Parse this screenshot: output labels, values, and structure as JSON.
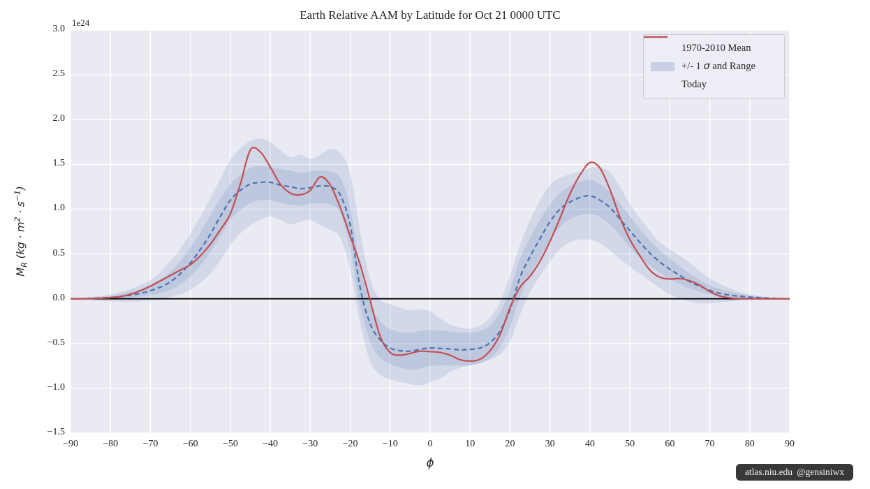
{
  "header": {
    "title": "Earth Relative AAM by Latitude for Oct 21 0000 UTC"
  },
  "axes": {
    "y_offset_label": "1e24",
    "xlabel": "ϕ",
    "ylabel_parts": {
      "base": "M",
      "sub": "R",
      "p1": " (kg · m",
      "sup1": "2",
      "p2": " · s",
      "sup2": "−1",
      "p3": ")"
    }
  },
  "legend": {
    "mean_label": "1970-2010 Mean",
    "band_pre": "+/- 1 ",
    "band_sigma": "σ",
    "band_post": " and Range",
    "today_label": "Today"
  },
  "watermark": {
    "site": "atlas.niu.edu",
    "handle": "@gensiniwx"
  },
  "colors": {
    "plot_bg": "#eaeaf2",
    "grid": "#ffffff",
    "mean_blue": "#4C72B0",
    "today_red": "#C44E52",
    "band_fill": "#4C72B0",
    "zero_line": "#000000",
    "text": "#262626"
  },
  "chart_data": {
    "type": "line",
    "title": "Earth Relative AAM by Latitude for Oct 21 0000 UTC",
    "xlabel": "ϕ",
    "ylabel": "M_R (kg·m²·s⁻¹)",
    "y_multiplier": "1e24",
    "xlim": [
      -90,
      90
    ],
    "ylim": [
      -1.5,
      3.0
    ],
    "grid": true,
    "zero_line": true,
    "legend_position": "upper right",
    "xticks": [
      [
        -90,
        "−90"
      ],
      [
        -80,
        "−80"
      ],
      [
        -70,
        "−70"
      ],
      [
        -60,
        "−60"
      ],
      [
        -50,
        "−50"
      ],
      [
        -40,
        "−40"
      ],
      [
        -30,
        "−30"
      ],
      [
        -20,
        "−20"
      ],
      [
        -10,
        "−10"
      ],
      [
        0,
        "0"
      ],
      [
        10,
        "10"
      ],
      [
        20,
        "20"
      ],
      [
        30,
        "30"
      ],
      [
        40,
        "40"
      ],
      [
        50,
        "50"
      ],
      [
        60,
        "60"
      ],
      [
        70,
        "70"
      ],
      [
        80,
        "80"
      ],
      [
        90,
        "90"
      ]
    ],
    "yticks": [
      [
        3.0,
        "3.0"
      ],
      [
        2.5,
        "2.5"
      ],
      [
        2.0,
        "2.0"
      ],
      [
        1.5,
        "1.5"
      ],
      [
        1.0,
        "1.0"
      ],
      [
        0.5,
        "0.5"
      ],
      [
        0.0,
        "0.0"
      ],
      [
        -0.5,
        "−0.5"
      ],
      [
        -1.0,
        "−1.0"
      ],
      [
        -1.5,
        "−1.5"
      ]
    ],
    "x": [
      -90,
      -87.5,
      -85,
      -82.5,
      -80,
      -77.5,
      -75,
      -72.5,
      -70,
      -67.5,
      -65,
      -62.5,
      -60,
      -57.5,
      -55,
      -52.5,
      -50,
      -47.5,
      -45,
      -42.5,
      -40,
      -37.5,
      -35,
      -32.5,
      -30,
      -27.5,
      -25,
      -22.5,
      -20,
      -17.5,
      -15,
      -12.5,
      -10,
      -7.5,
      -5,
      -2.5,
      0,
      2.5,
      5,
      7.5,
      10,
      12.5,
      15,
      17.5,
      20,
      22.5,
      25,
      27.5,
      30,
      32.5,
      35,
      37.5,
      40,
      42.5,
      45,
      47.5,
      50,
      52.5,
      55,
      57.5,
      60,
      62.5,
      65,
      67.5,
      70,
      72.5,
      75,
      77.5,
      80,
      82.5,
      85,
      87.5,
      90
    ],
    "series": [
      {
        "name": "1970-2010 Mean",
        "style": "dashed",
        "color": "#4C72B0",
        "values": [
          0,
          0,
          0.005,
          0.01,
          0.015,
          0.025,
          0.04,
          0.06,
          0.09,
          0.13,
          0.19,
          0.28,
          0.4,
          0.55,
          0.72,
          0.92,
          1.1,
          1.21,
          1.28,
          1.3,
          1.3,
          1.27,
          1.25,
          1.23,
          1.24,
          1.26,
          1.25,
          1.16,
          0.82,
          0.12,
          -0.28,
          -0.46,
          -0.55,
          -0.58,
          -0.585,
          -0.565,
          -0.55,
          -0.555,
          -0.56,
          -0.57,
          -0.565,
          -0.55,
          -0.49,
          -0.36,
          -0.12,
          0.24,
          0.47,
          0.67,
          0.86,
          1.0,
          1.08,
          1.13,
          1.15,
          1.1,
          1.02,
          0.89,
          0.76,
          0.63,
          0.51,
          0.41,
          0.33,
          0.26,
          0.19,
          0.14,
          0.095,
          0.06,
          0.04,
          0.028,
          0.018,
          0.012,
          0.006,
          0.002,
          0
        ]
      },
      {
        "name": "Today",
        "style": "solid",
        "color": "#C44E52",
        "values": [
          0,
          0,
          0.002,
          0.006,
          0.012,
          0.025,
          0.05,
          0.09,
          0.14,
          0.2,
          0.26,
          0.32,
          0.38,
          0.48,
          0.61,
          0.77,
          0.95,
          1.28,
          1.66,
          1.64,
          1.47,
          1.28,
          1.18,
          1.16,
          1.21,
          1.36,
          1.27,
          1.02,
          0.7,
          0.38,
          -0.02,
          -0.42,
          -0.6,
          -0.63,
          -0.61,
          -0.585,
          -0.59,
          -0.6,
          -0.63,
          -0.68,
          -0.695,
          -0.675,
          -0.58,
          -0.4,
          -0.1,
          0.13,
          0.25,
          0.42,
          0.64,
          0.9,
          1.17,
          1.38,
          1.52,
          1.46,
          1.22,
          0.91,
          0.66,
          0.48,
          0.32,
          0.24,
          0.22,
          0.225,
          0.2,
          0.15,
          0.08,
          0.03,
          0.01,
          0.003,
          0,
          0,
          0,
          0,
          0
        ]
      }
    ],
    "bands": [
      {
        "name": "Range",
        "color": "#4C72B0",
        "opacity": 0.15,
        "upper": [
          0.008,
          0.012,
          0.02,
          0.032,
          0.05,
          0.075,
          0.11,
          0.15,
          0.21,
          0.3,
          0.42,
          0.56,
          0.73,
          0.92,
          1.12,
          1.34,
          1.55,
          1.68,
          1.76,
          1.79,
          1.75,
          1.66,
          1.58,
          1.61,
          1.56,
          1.61,
          1.67,
          1.63,
          1.4,
          0.75,
          0.22,
          -0.01,
          -0.06,
          -0.1,
          -0.13,
          -0.12,
          -0.14,
          -0.22,
          -0.29,
          -0.32,
          -0.335,
          -0.3,
          -0.21,
          -0.04,
          0.26,
          0.6,
          0.88,
          1.1,
          1.27,
          1.35,
          1.39,
          1.42,
          1.46,
          1.47,
          1.41,
          1.25,
          1.06,
          0.9,
          0.76,
          0.63,
          0.55,
          0.48,
          0.4,
          0.31,
          0.23,
          0.165,
          0.115,
          0.075,
          0.048,
          0.03,
          0.018,
          0.01,
          0.005
        ],
        "lower": [
          -0.008,
          -0.012,
          -0.018,
          -0.025,
          -0.03,
          -0.033,
          -0.033,
          -0.028,
          -0.02,
          -0.005,
          0.02,
          0.05,
          0.1,
          0.18,
          0.28,
          0.43,
          0.6,
          0.73,
          0.82,
          0.88,
          0.92,
          0.88,
          0.83,
          0.86,
          0.88,
          0.82,
          0.77,
          0.68,
          0.33,
          -0.28,
          -0.7,
          -0.85,
          -0.9,
          -0.93,
          -0.95,
          -0.97,
          -0.93,
          -0.89,
          -0.82,
          -0.77,
          -0.74,
          -0.72,
          -0.68,
          -0.62,
          -0.48,
          -0.18,
          0.08,
          0.25,
          0.42,
          0.55,
          0.63,
          0.66,
          0.66,
          0.62,
          0.54,
          0.44,
          0.36,
          0.28,
          0.2,
          0.12,
          0.05,
          0,
          -0.03,
          -0.05,
          -0.05,
          -0.04,
          -0.03,
          -0.02,
          -0.012,
          -0.008,
          -0.005,
          -0.002,
          0
        ]
      },
      {
        "name": "+/- 1 sigma",
        "color": "#4C72B0",
        "opacity": 0.15,
        "upper": [
          0.005,
          0.008,
          0.012,
          0.02,
          0.03,
          0.05,
          0.08,
          0.11,
          0.16,
          0.22,
          0.3,
          0.42,
          0.57,
          0.74,
          0.93,
          1.12,
          1.28,
          1.38,
          1.46,
          1.48,
          1.47,
          1.45,
          1.43,
          1.41,
          1.42,
          1.43,
          1.42,
          1.35,
          1.02,
          0.35,
          -0.05,
          -0.25,
          -0.34,
          -0.37,
          -0.38,
          -0.36,
          -0.35,
          -0.355,
          -0.365,
          -0.375,
          -0.375,
          -0.36,
          -0.3,
          -0.15,
          0.1,
          0.45,
          0.68,
          0.88,
          1.05,
          1.18,
          1.26,
          1.31,
          1.33,
          1.28,
          1.19,
          1.06,
          0.92,
          0.78,
          0.65,
          0.54,
          0.45,
          0.36,
          0.28,
          0.21,
          0.15,
          0.11,
          0.08,
          0.055,
          0.038,
          0.025,
          0.015,
          0.008,
          0.004
        ],
        "lower": [
          -0.004,
          -0.004,
          -0.003,
          -0.002,
          0,
          0.005,
          0.015,
          0.025,
          0.04,
          0.06,
          0.1,
          0.16,
          0.25,
          0.37,
          0.52,
          0.7,
          0.88,
          0.99,
          1.07,
          1.1,
          1.1,
          1.07,
          1.05,
          1.04,
          1.06,
          1.07,
          1.05,
          0.96,
          0.55,
          -0.08,
          -0.48,
          -0.66,
          -0.73,
          -0.77,
          -0.79,
          -0.78,
          -0.75,
          -0.745,
          -0.745,
          -0.75,
          -0.745,
          -0.72,
          -0.66,
          -0.54,
          -0.32,
          0.02,
          0.26,
          0.46,
          0.65,
          0.8,
          0.89,
          0.93,
          0.95,
          0.91,
          0.83,
          0.71,
          0.57,
          0.46,
          0.37,
          0.29,
          0.22,
          0.165,
          0.115,
          0.08,
          0.05,
          0.032,
          0.02,
          0.012,
          0.006,
          0.003,
          0.001,
          0,
          0
        ]
      }
    ]
  }
}
